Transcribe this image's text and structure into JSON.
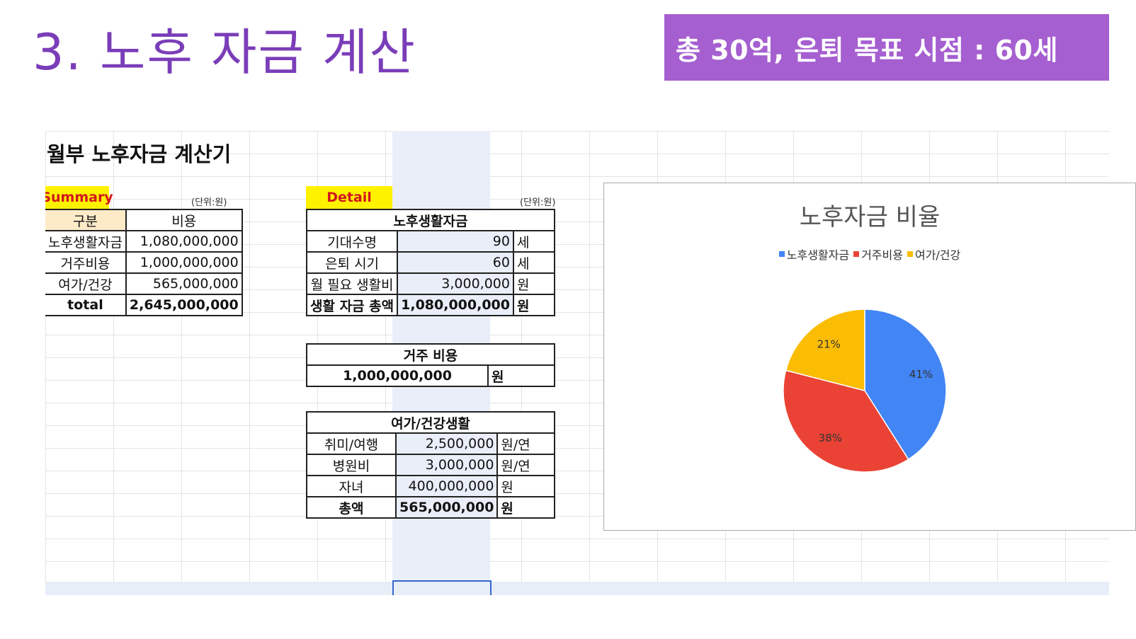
{
  "slide": {
    "title": "3. 노후 자금 계산",
    "goal": "총 30억, 은퇴 목표 시점  : 60세"
  },
  "sheet": {
    "title": "월부 노후자금 계산기"
  },
  "summary": {
    "label": "Summary",
    "unit": "(단위:원)",
    "headers": [
      "구분",
      "비용"
    ],
    "rows": [
      {
        "name": "노후생활자금",
        "value": "1,080,000,000"
      },
      {
        "name": "거주비용",
        "value": "1,000,000,000"
      },
      {
        "name": "여가/건강",
        "value": "565,000,000"
      }
    ],
    "total_label": "total",
    "total_value": "2,645,000,000"
  },
  "detail": {
    "label": "Detail",
    "unit": "(단위:원)",
    "living": {
      "header": "노후생활자금",
      "rows": [
        {
          "name": "기대수명",
          "value": "90",
          "unit": "세"
        },
        {
          "name": "은퇴 시기",
          "value": "60",
          "unit": "세"
        },
        {
          "name": "월 필요 생활비",
          "value": "3,000,000",
          "unit": "원"
        }
      ],
      "total": {
        "name": "생활 자금 총액",
        "value": "1,080,000,000",
        "unit": "원"
      }
    },
    "housing": {
      "header": "거주 비용",
      "value": "1,000,000,000",
      "unit": "원"
    },
    "leisure": {
      "header": "여가/건강생활",
      "rows": [
        {
          "name": "취미/여행",
          "value": "2,500,000",
          "unit": "원/연"
        },
        {
          "name": "병원비",
          "value": "3,000,000",
          "unit": "원/연"
        },
        {
          "name": "자녀",
          "value": "400,000,000",
          "unit": "원"
        }
      ],
      "total": {
        "name": "총액",
        "value": "565,000,000",
        "unit": "원"
      }
    }
  },
  "chart_data": {
    "type": "pie",
    "title": "노후자금 비율",
    "categories": [
      "노후생활자금",
      "거주비용",
      "여가/건강"
    ],
    "values": [
      41,
      38,
      21
    ],
    "labels": [
      "41%",
      "38%",
      "21%"
    ],
    "colors": [
      "#4285f4",
      "#ea4335",
      "#fbbc04"
    ],
    "legend_position": "top"
  }
}
